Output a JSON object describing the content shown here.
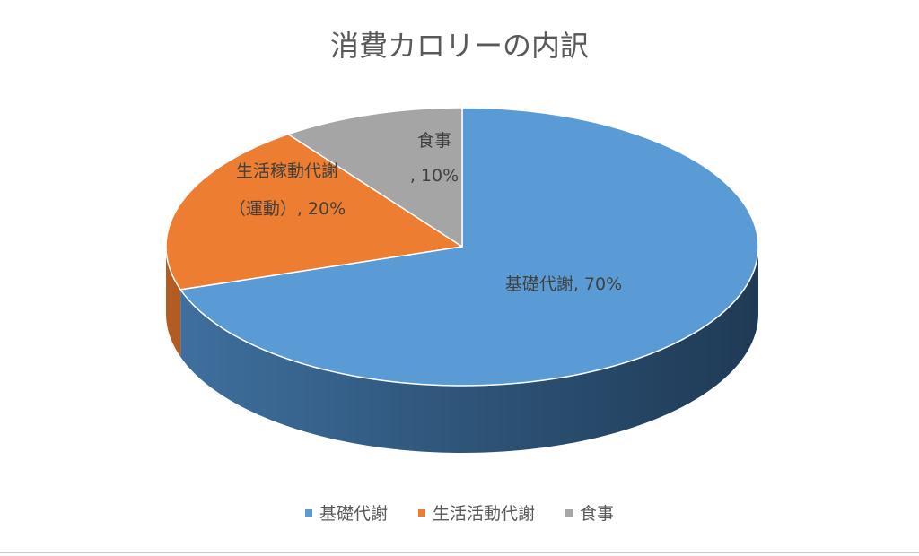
{
  "chart_data": {
    "type": "pie",
    "title": "消費カロリーの内訳",
    "categories": [
      "基礎代謝",
      "生活活動代謝",
      "食事"
    ],
    "values": [
      70,
      20,
      10
    ],
    "value_labels": [
      "基礎代謝, 70%",
      "生活稼動代謝\n（運動）, 20%",
      "食事\n, 10%"
    ],
    "colors": [
      "#5b9bd5",
      "#ed7d31",
      "#a5a5a5"
    ],
    "legend": "bottom"
  }
}
